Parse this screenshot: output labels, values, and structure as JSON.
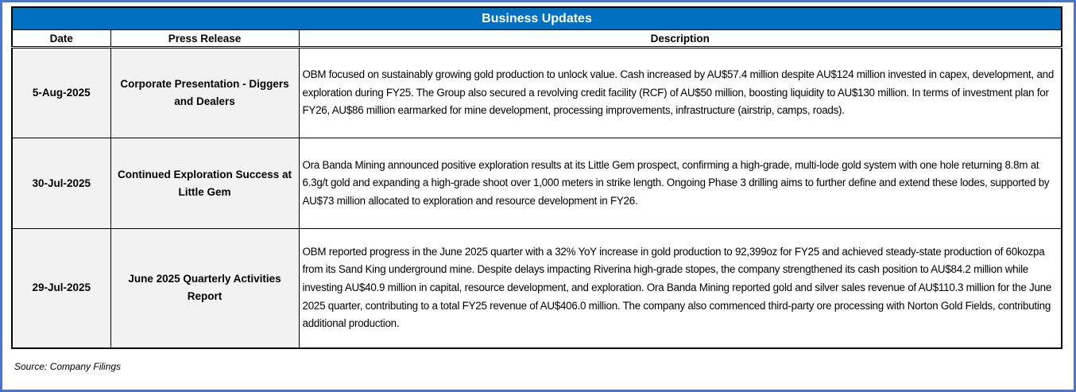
{
  "title": "Business Updates",
  "columns": {
    "date": "Date",
    "press_release": "Press Release",
    "description": "Description"
  },
  "rows": [
    {
      "date": "5-Aug-2025",
      "press_release": "Corporate Presentation - Diggers and Dealers",
      "description": "OBM focused on sustainably growing gold production to unlock value. Cash increased by AU$57.4 million despite AU$124 million invested in capex, development, and exploration during FY25. The Group also secured a revolving credit facility (RCF) of AU$50 million, boosting liquidity to AU$130 million. In terms of investment plan for FY26, AU$86 million earmarked for mine development, processing improvements, infrastructure (airstrip, camps, roads)."
    },
    {
      "date": "30-Jul-2025",
      "press_release": "Continued Exploration Success at Little Gem",
      "description": "Ora Banda Mining announced positive exploration results at its Little Gem prospect, confirming a high-grade, multi-lode gold system with one hole returning 8.8m at 6.3g/t gold and expanding a high-grade shoot over 1,000 meters in strike length. Ongoing Phase 3 drilling aims to further define and extend these lodes, supported by AU$73 million allocated to exploration and resource development in FY26."
    },
    {
      "date": "29-Jul-2025",
      "press_release": "June 2025 Quarterly Activities Report",
      "description": "OBM reported progress in the June 2025 quarter with a 32% YoY increase in gold production to 92,399oz for FY25 and achieved steady-state production of 60kozpa from its Sand King underground mine. Despite delays impacting Riverina high-grade stopes, the company strengthened its cash position to AU$84.2 million while investing AU$40.9 million in capital, resource development, and exploration. Ora Banda Mining reported gold and silver sales revenue of AU$110.3 million for the June 2025 quarter, contributing to a total FY25 revenue of AU$406.0 million. The company also commenced third-party ore processing with Norton Gold Fields, contributing additional production."
    }
  ],
  "source": "Source: Company Filings",
  "colors": {
    "title_bg": "#0070c0",
    "frame": "#4a76c6",
    "label_bg": "#f2f2f2"
  }
}
